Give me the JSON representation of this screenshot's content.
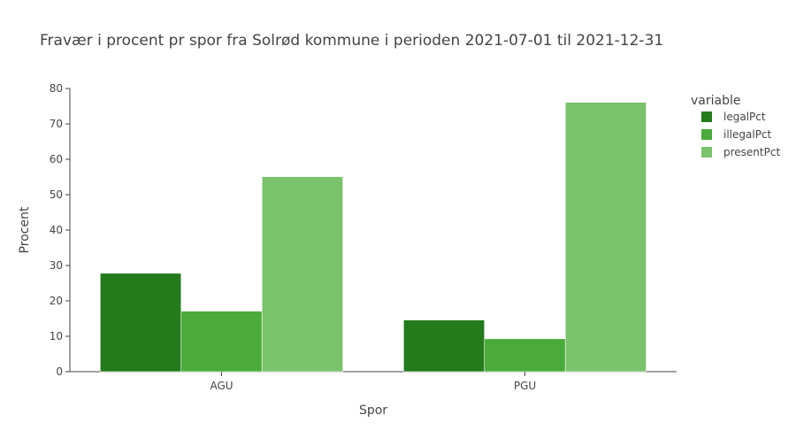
{
  "chart_data": {
    "type": "bar",
    "title": "Fravær i procent pr spor fra Solrød kommune i perioden 2021-07-01 til 2021-12-31",
    "xlabel": "Spor",
    "ylabel": "Procent",
    "categories": [
      "AGU",
      "PGU"
    ],
    "series": [
      {
        "name": "legalPct",
        "values": [
          27.8,
          14.6
        ]
      },
      {
        "name": "illegalPct",
        "values": [
          17.1,
          9.3
        ]
      },
      {
        "name": "presentPct",
        "values": [
          55.1,
          76.1
        ]
      }
    ],
    "ylim": [
      0,
      80
    ],
    "yticks": [
      0,
      10,
      20,
      30,
      40,
      50,
      60,
      70,
      80
    ],
    "grid": false,
    "legend_title": "variable",
    "legend_position": "top-right",
    "colors": [
      "#237b1b",
      "#4aab3a",
      "#7bc26d"
    ]
  }
}
